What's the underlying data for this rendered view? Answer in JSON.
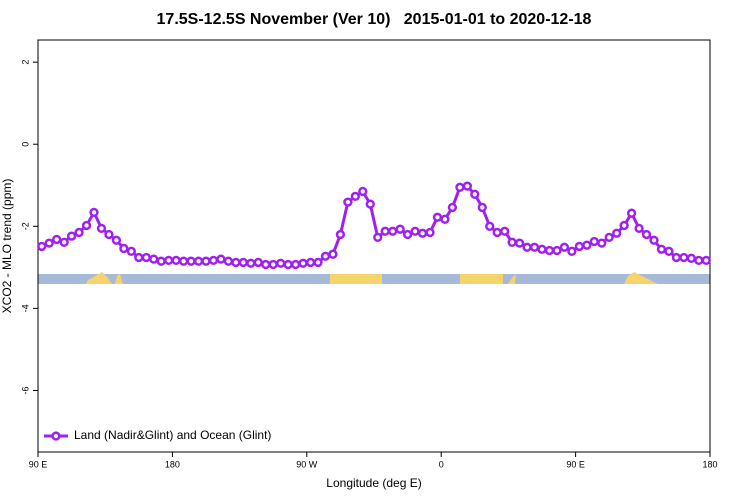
{
  "chart_data": {
    "type": "line",
    "title": "17.5S-12.5S November (Ver 10)   2015-01-01 to 2020-12-18",
    "xlabel": "Longitude (deg E)",
    "ylabel": "XCO2 - MLO trend (ppm)",
    "x": [
      92.5,
      97.5,
      102.5,
      107.5,
      112.5,
      117.5,
      122.5,
      127.5,
      132.5,
      137.5,
      142.5,
      147.5,
      152.5,
      157.5,
      162.5,
      167.5,
      172.5,
      177.5,
      182.5,
      187.5,
      192.5,
      197.5,
      202.5,
      207.5,
      212.5,
      217.5,
      222.5,
      227.5,
      232.5,
      237.5,
      242.5,
      247.5,
      252.5,
      257.5,
      262.5,
      267.5,
      272.5,
      277.5,
      282.5,
      287.5,
      292.5,
      297.5,
      302.5,
      307.5,
      312.5,
      317.5,
      322.5,
      327.5,
      332.5,
      337.5,
      342.5,
      347.5,
      352.5,
      357.5,
      362.5,
      367.5,
      372.5,
      377.5,
      382.5,
      387.5,
      392.5,
      397.5,
      402.5,
      407.5,
      412.5,
      417.5,
      422.5,
      427.5,
      432.5,
      437.5,
      442.5,
      447.5,
      452.5,
      457.5,
      462.5,
      467.5,
      472.5,
      477.5,
      482.5,
      487.5,
      492.5,
      497.5,
      502.5,
      507.5,
      512.5,
      517.5,
      522.5,
      527.5,
      532.5,
      537.5
    ],
    "series": [
      {
        "name": "Land (Nadir&Glint) and Ocean (Glint)",
        "color": "#a020f0",
        "values": [
          -2.49,
          -2.41,
          -2.32,
          -2.39,
          -2.24,
          -2.15,
          -1.98,
          -1.66,
          -2.05,
          -2.2,
          -2.34,
          -2.54,
          -2.61,
          -2.76,
          -2.76,
          -2.8,
          -2.85,
          -2.83,
          -2.83,
          -2.85,
          -2.85,
          -2.85,
          -2.85,
          -2.83,
          -2.8,
          -2.85,
          -2.88,
          -2.88,
          -2.9,
          -2.88,
          -2.93,
          -2.93,
          -2.9,
          -2.93,
          -2.93,
          -2.9,
          -2.88,
          -2.88,
          -2.73,
          -2.68,
          -2.2,
          -1.41,
          -1.27,
          -1.15,
          -1.46,
          -2.27,
          -2.12,
          -2.12,
          -2.07,
          -2.2,
          -2.12,
          -2.17,
          -2.15,
          -1.78,
          -1.83,
          -1.54,
          -1.05,
          -1.02,
          -1.22,
          -1.54,
          -2.0,
          -2.15,
          -2.12,
          -2.39,
          -2.41,
          -2.51,
          -2.51,
          -2.56,
          -2.59,
          -2.59,
          -2.51,
          -2.61,
          -2.49,
          -2.46,
          -2.37,
          -2.41,
          -2.27,
          -2.17,
          -1.98,
          -1.68,
          -2.05,
          -2.2,
          -2.34,
          -2.56,
          -2.61,
          -2.76,
          -2.76,
          -2.78,
          -2.83,
          -2.83
        ]
      }
    ],
    "xlim": [
      90,
      540
    ],
    "xticks": [
      {
        "value": 90,
        "label": "90 E"
      },
      180,
      {
        "value": 270,
        "label": "90 W"
      },
      {
        "value": 360,
        "label": "0"
      },
      {
        "value": 450,
        "label": "90 E"
      },
      {
        "value": 540,
        "label": "180"
      }
    ],
    "ylim": [
      -7.5,
      2.54
    ],
    "yticks": [
      2,
      0,
      -2,
      -4,
      -6
    ],
    "legend": "bottomleft"
  }
}
